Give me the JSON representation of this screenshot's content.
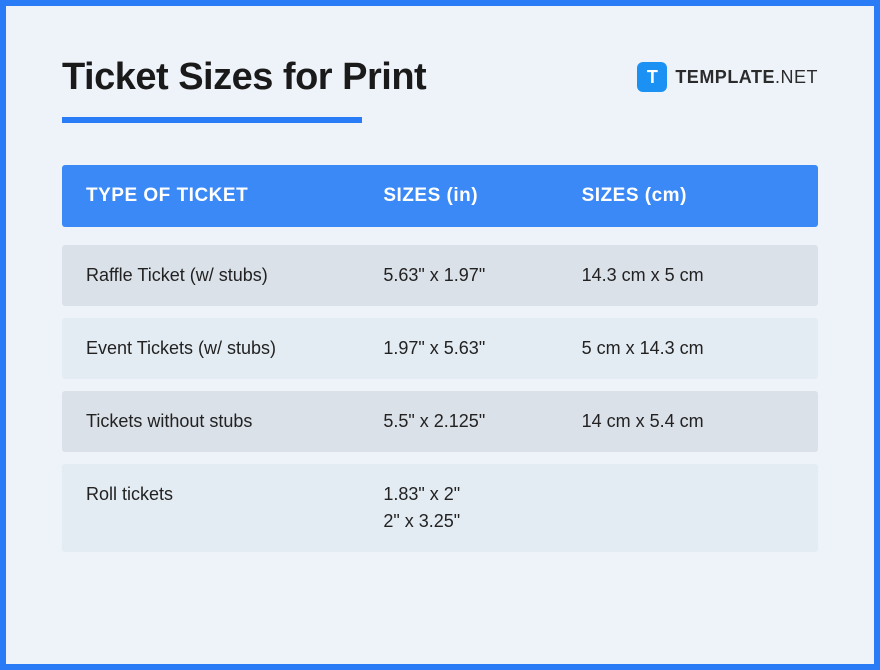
{
  "title": "Ticket Sizes for Print",
  "brand": {
    "icon_letter": "T",
    "name_bold": "TEMPLATE",
    "name_light": ".NET"
  },
  "colors": {
    "frame_border": "#2a7cf6",
    "page_bg": "#eef3fa",
    "title_underline": "#2a7cf6",
    "header_bg": "#3b89f6",
    "header_text": "#ffffff",
    "row_shade_a": "#dbe1e9",
    "row_shade_b": "#e4ecf3",
    "text_color": "#222222",
    "brand_icon_bg": "#1b91f4"
  },
  "table": {
    "columns": [
      "TYPE OF TICKET",
      "SIZES (in)",
      "SIZES (cm)"
    ],
    "column_widths": [
      "42%",
      "28%",
      "30%"
    ],
    "rows": [
      {
        "shade": "a",
        "type": "Raffle Ticket (w/ stubs)",
        "in": [
          "5.63\" x 1.97\""
        ],
        "cm": [
          "14.3 cm x 5 cm"
        ]
      },
      {
        "shade": "b",
        "type": "Event Tickets (w/ stubs)",
        "in": [
          "1.97\" x 5.63\""
        ],
        "cm": [
          "5 cm x 14.3 cm"
        ]
      },
      {
        "shade": "a",
        "type": "Tickets without stubs",
        "in": [
          "5.5\" x 2.125\""
        ],
        "cm": [
          "14 cm x 5.4 cm"
        ]
      },
      {
        "shade": "b",
        "type": "Roll tickets",
        "in": [
          "1.83\" x 2\"",
          "2\" x 3.25\""
        ],
        "cm": []
      }
    ]
  }
}
